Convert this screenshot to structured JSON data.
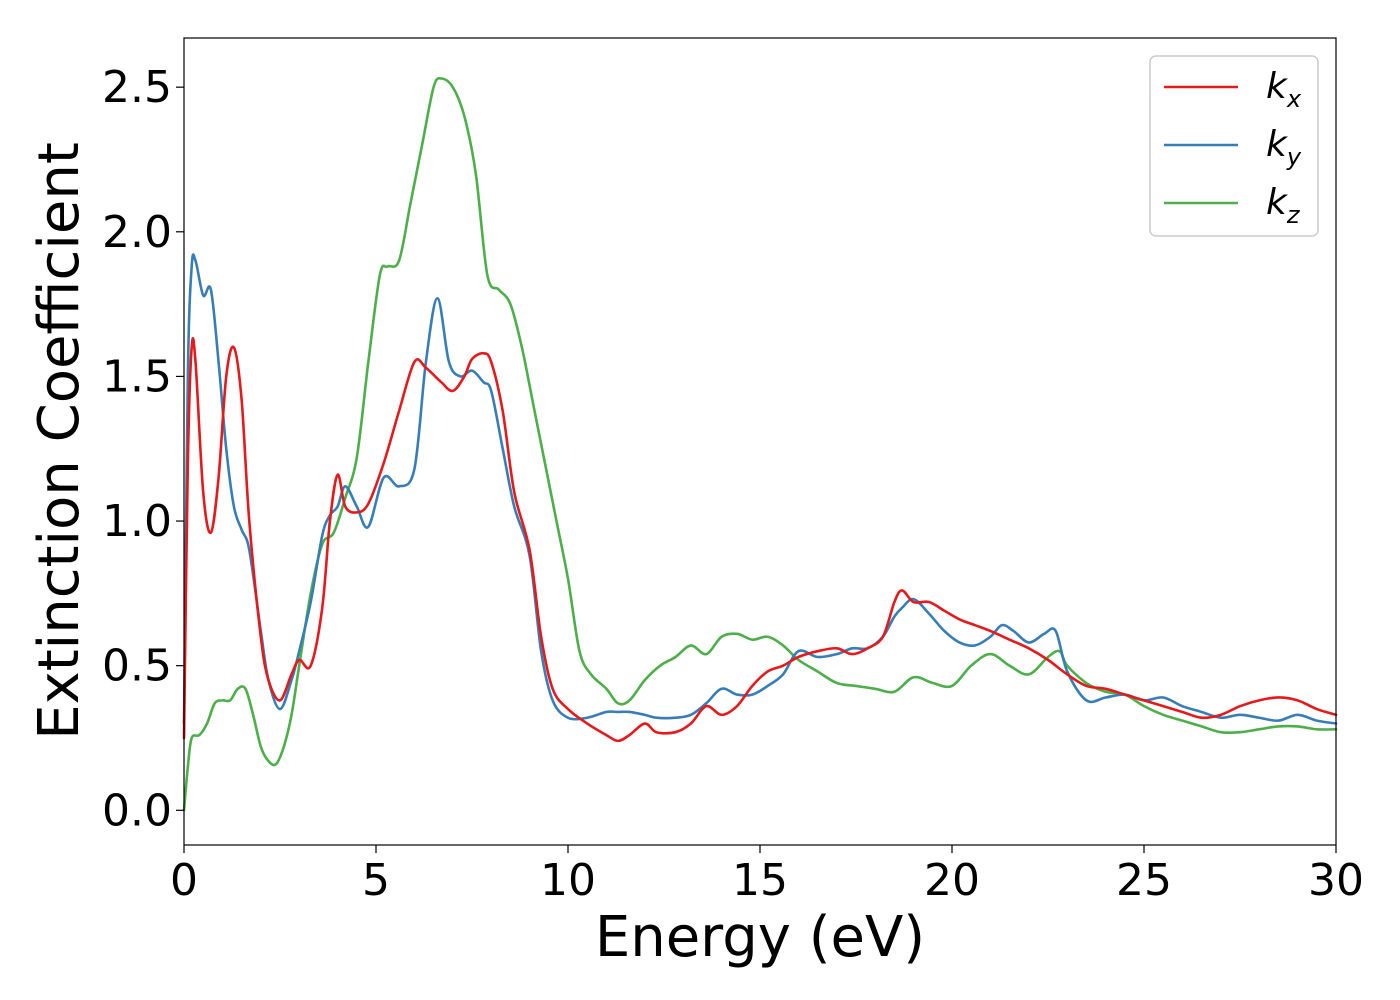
{
  "chart_data": {
    "type": "line",
    "title": "",
    "xlabel": "Energy (eV)",
    "ylabel": "Extinction Coefficient",
    "xlim": [
      0,
      30
    ],
    "ylim": [
      -0.12,
      2.67
    ],
    "xticks": [
      0,
      5,
      10,
      15,
      20,
      25,
      30
    ],
    "xtick_labels": [
      "0",
      "5",
      "10",
      "15",
      "20",
      "25",
      "30"
    ],
    "yticks": [
      0.0,
      0.5,
      1.0,
      1.5,
      2.0,
      2.5
    ],
    "ytick_labels": [
      "0.0",
      "0.5",
      "1.0",
      "1.5",
      "2.0",
      "2.5"
    ],
    "grid": false,
    "legend_position": "top-right",
    "series": [
      {
        "name": "k",
        "subscript": "x",
        "color": "#e41a1c",
        "x": [
          0.0,
          0.1,
          0.2,
          0.3,
          0.5,
          0.7,
          0.9,
          1.1,
          1.3,
          1.5,
          1.7,
          2.0,
          2.2,
          2.5,
          2.8,
          3.0,
          3.3,
          3.6,
          3.8,
          4.0,
          4.2,
          4.5,
          4.8,
          5.2,
          5.6,
          6.0,
          6.3,
          6.7,
          7.0,
          7.3,
          7.5,
          7.8,
          8.0,
          8.3,
          8.6,
          9.0,
          9.3,
          9.6,
          10.0,
          10.5,
          11.0,
          11.3,
          11.6,
          12.0,
          12.3,
          12.8,
          13.2,
          13.6,
          14.0,
          14.4,
          14.8,
          15.2,
          15.6,
          16.0,
          16.5,
          17.0,
          17.4,
          17.8,
          18.2,
          18.5,
          18.7,
          19.0,
          19.4,
          19.8,
          20.2,
          20.6,
          21.0,
          21.5,
          22.0,
          22.5,
          23.0,
          23.5,
          24.0,
          24.5,
          25.0,
          25.5,
          26.0,
          26.5,
          27.0,
          27.5,
          28.0,
          28.5,
          29.0,
          29.5,
          30.0
        ],
        "values": [
          0.25,
          1.2,
          1.6,
          1.55,
          1.1,
          0.96,
          1.15,
          1.5,
          1.6,
          1.42,
          1.0,
          0.6,
          0.45,
          0.38,
          0.47,
          0.52,
          0.5,
          0.7,
          1.0,
          1.16,
          1.05,
          1.03,
          1.06,
          1.2,
          1.38,
          1.55,
          1.53,
          1.48,
          1.45,
          1.5,
          1.56,
          1.58,
          1.55,
          1.38,
          1.1,
          0.9,
          0.6,
          0.42,
          0.35,
          0.3,
          0.26,
          0.24,
          0.26,
          0.3,
          0.27,
          0.27,
          0.3,
          0.36,
          0.33,
          0.36,
          0.43,
          0.48,
          0.5,
          0.53,
          0.55,
          0.56,
          0.54,
          0.56,
          0.6,
          0.72,
          0.76,
          0.72,
          0.72,
          0.69,
          0.66,
          0.64,
          0.62,
          0.59,
          0.56,
          0.52,
          0.47,
          0.43,
          0.42,
          0.4,
          0.38,
          0.36,
          0.34,
          0.32,
          0.33,
          0.36,
          0.38,
          0.39,
          0.38,
          0.35,
          0.33
        ]
      },
      {
        "name": "k",
        "subscript": "y",
        "color": "#377eb8",
        "x": [
          0.0,
          0.1,
          0.2,
          0.3,
          0.5,
          0.7,
          0.9,
          1.1,
          1.3,
          1.5,
          1.7,
          2.0,
          2.2,
          2.5,
          2.8,
          3.0,
          3.3,
          3.6,
          3.8,
          4.0,
          4.2,
          4.5,
          4.8,
          5.2,
          5.6,
          6.0,
          6.3,
          6.6,
          6.9,
          7.2,
          7.5,
          7.8,
          8.0,
          8.3,
          8.6,
          9.0,
          9.3,
          9.6,
          10.0,
          10.5,
          11.0,
          11.3,
          11.6,
          12.0,
          12.3,
          12.8,
          13.2,
          13.6,
          14.0,
          14.4,
          14.8,
          15.2,
          15.6,
          16.0,
          16.5,
          17.0,
          17.4,
          17.8,
          18.2,
          18.5,
          18.7,
          19.0,
          19.4,
          19.8,
          20.2,
          20.6,
          21.0,
          21.3,
          21.6,
          22.0,
          22.4,
          22.7,
          23.0,
          23.5,
          24.0,
          24.5,
          25.0,
          25.5,
          26.0,
          26.5,
          27.0,
          27.5,
          28.0,
          28.5,
          29.0,
          29.5,
          30.0
        ],
        "values": [
          0.3,
          1.5,
          1.88,
          1.9,
          1.78,
          1.8,
          1.55,
          1.25,
          1.05,
          0.97,
          0.9,
          0.62,
          0.45,
          0.35,
          0.45,
          0.55,
          0.72,
          0.95,
          1.02,
          1.05,
          1.12,
          1.05,
          0.98,
          1.15,
          1.12,
          1.18,
          1.55,
          1.77,
          1.55,
          1.5,
          1.52,
          1.48,
          1.45,
          1.25,
          1.05,
          0.88,
          0.55,
          0.38,
          0.32,
          0.32,
          0.34,
          0.34,
          0.34,
          0.33,
          0.32,
          0.32,
          0.33,
          0.37,
          0.42,
          0.4,
          0.4,
          0.43,
          0.47,
          0.55,
          0.53,
          0.54,
          0.56,
          0.56,
          0.6,
          0.67,
          0.7,
          0.73,
          0.68,
          0.62,
          0.58,
          0.57,
          0.6,
          0.64,
          0.62,
          0.58,
          0.61,
          0.62,
          0.48,
          0.38,
          0.39,
          0.4,
          0.38,
          0.39,
          0.36,
          0.34,
          0.32,
          0.33,
          0.32,
          0.31,
          0.33,
          0.31,
          0.3
        ]
      },
      {
        "name": "k",
        "subscript": "z",
        "color": "#4daf4a",
        "x": [
          0.0,
          0.1,
          0.2,
          0.4,
          0.6,
          0.8,
          1.0,
          1.2,
          1.4,
          1.6,
          1.8,
          2.0,
          2.2,
          2.4,
          2.6,
          2.8,
          3.0,
          3.3,
          3.6,
          3.9,
          4.2,
          4.5,
          4.8,
          5.1,
          5.3,
          5.6,
          5.9,
          6.2,
          6.5,
          6.7,
          7.0,
          7.3,
          7.6,
          7.9,
          8.2,
          8.5,
          8.8,
          9.1,
          9.4,
          9.7,
          10.0,
          10.3,
          10.6,
          11.0,
          11.3,
          11.6,
          12.0,
          12.4,
          12.8,
          13.2,
          13.6,
          14.0,
          14.4,
          14.8,
          15.2,
          15.6,
          16.0,
          16.5,
          17.0,
          17.5,
          18.0,
          18.5,
          19.0,
          19.5,
          20.0,
          20.5,
          21.0,
          21.5,
          22.0,
          22.5,
          22.8,
          23.0,
          23.5,
          24.0,
          24.5,
          25.0,
          25.5,
          26.0,
          26.5,
          27.0,
          27.5,
          28.0,
          28.5,
          29.0,
          29.5,
          30.0
        ],
        "values": [
          0.0,
          0.15,
          0.25,
          0.26,
          0.3,
          0.37,
          0.38,
          0.38,
          0.42,
          0.42,
          0.33,
          0.22,
          0.17,
          0.16,
          0.22,
          0.33,
          0.5,
          0.75,
          0.92,
          0.96,
          1.08,
          1.22,
          1.55,
          1.85,
          1.88,
          1.9,
          2.1,
          2.3,
          2.5,
          2.53,
          2.5,
          2.4,
          2.2,
          1.85,
          1.8,
          1.75,
          1.6,
          1.4,
          1.2,
          1.0,
          0.8,
          0.55,
          0.47,
          0.42,
          0.37,
          0.38,
          0.45,
          0.5,
          0.53,
          0.57,
          0.54,
          0.6,
          0.61,
          0.59,
          0.6,
          0.57,
          0.52,
          0.48,
          0.44,
          0.43,
          0.42,
          0.41,
          0.46,
          0.44,
          0.43,
          0.5,
          0.54,
          0.5,
          0.47,
          0.53,
          0.55,
          0.5,
          0.44,
          0.41,
          0.4,
          0.36,
          0.33,
          0.31,
          0.29,
          0.27,
          0.27,
          0.28,
          0.29,
          0.29,
          0.28,
          0.28
        ]
      }
    ]
  }
}
